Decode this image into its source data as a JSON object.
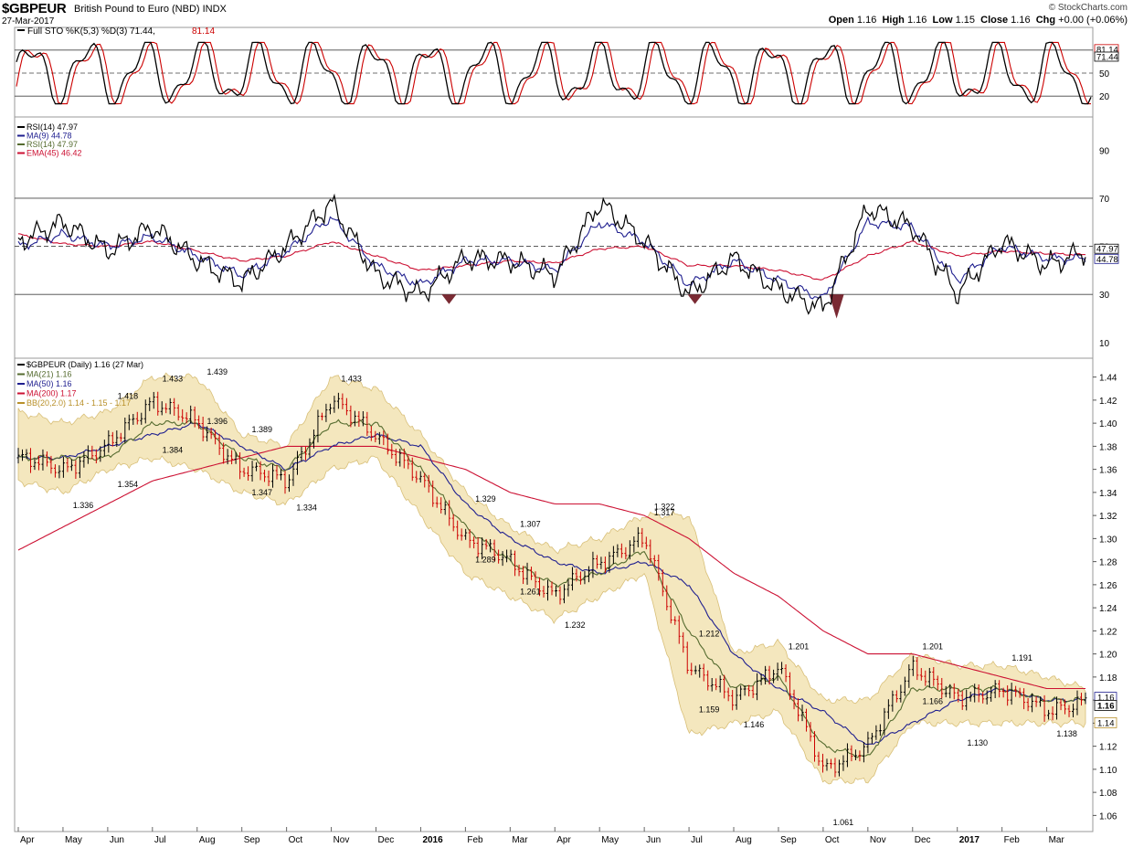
{
  "header": {
    "symbol": "$GBPEUR",
    "description": "British Pound to Euro (NBD)  INDX",
    "date": "27-Mar-2017",
    "brand": "© StockCharts.com",
    "open_label": "Open",
    "open": "1.16",
    "high_label": "High",
    "high": "1.16",
    "low_label": "Low",
    "low": "1.15",
    "close_label": "Close",
    "close": "1.16",
    "chg_label": "Chg",
    "chg": "+0.00 (+0.06%)"
  },
  "colors": {
    "price_up": "#000000",
    "price_down": "#cc0000",
    "ma21": "#556b2f",
    "ma50": "#1f1f8f",
    "ma200": "#cc1133",
    "bollinger_fill": "#f2e3b3",
    "bollinger_edge": "#d8bf78",
    "sto_k": "#000000",
    "sto_d": "#cc0000",
    "rsi": "#000000",
    "rsi_ma9": "#1f1f8f",
    "rsi_ema45": "#cc1133"
  },
  "panels": {
    "sto": {
      "legend": "Full STO %K(5,3) %D(3) 71.44,",
      "legend_d": "81.14",
      "ticks": [
        "80",
        "50",
        "20"
      ],
      "badges": [
        "81.14",
        "71.44"
      ]
    },
    "rsi": {
      "legend": [
        "RSI(14) 47.97",
        "MA(9) 44.78",
        "RSI(14) 47.97",
        "EMA(45) 46.42"
      ],
      "ticks": [
        "90",
        "70",
        "50",
        "30",
        "10"
      ],
      "badges": [
        "47.97",
        "44.78"
      ]
    },
    "price": {
      "legend": [
        "$GBPEUR (Daily) 1.16 (27 Mar)",
        "MA(21) 1.16",
        "MA(50) 1.16",
        "MA(200) 1.17",
        "BB(20,2.0) 1.14 - 1.15 - 1.17"
      ],
      "badges": [
        "1.16",
        "1.16",
        "1.14"
      ]
    }
  },
  "chart_data": [
    {
      "type": "line",
      "title": "Full STO %K(5,3) %D(3)",
      "ylim": [
        0,
        100
      ],
      "y_ticks": [
        20,
        50,
        80
      ],
      "series": [
        {
          "name": "%K",
          "last": 71.44
        },
        {
          "name": "%D",
          "last": 81.14
        }
      ]
    },
    {
      "type": "line",
      "title": "RSI(14)",
      "ylim": [
        5,
        100
      ],
      "y_ticks": [
        10,
        30,
        50,
        70,
        90
      ],
      "x": [
        "2015-04",
        "2015-05",
        "2015-06",
        "2015-07",
        "2015-08",
        "2015-09",
        "2015-10",
        "2015-11",
        "2015-12",
        "2016-01",
        "2016-02",
        "2016-03",
        "2016-04",
        "2016-05",
        "2016-06",
        "2016-07",
        "2016-08",
        "2016-09",
        "2016-10",
        "2016-11",
        "2016-12",
        "2017-01",
        "2017-02",
        "2017-03",
        "2017-03-27"
      ],
      "series": [
        {
          "name": "RSI(14)",
          "values": [
            52,
            60,
            48,
            58,
            44,
            35,
            50,
            68,
            38,
            30,
            45,
            44,
            38,
            68,
            52,
            30,
            45,
            32,
            24,
            66,
            58,
            30,
            52,
            42,
            47.97
          ]
        },
        {
          "name": "MA(9)",
          "values": [
            50,
            55,
            50,
            54,
            46,
            38,
            48,
            62,
            42,
            34,
            44,
            44,
            40,
            60,
            52,
            34,
            44,
            36,
            28,
            60,
            58,
            36,
            50,
            45,
            44.78
          ]
        },
        {
          "name": "EMA(45)",
          "values": [
            55,
            51,
            50,
            52,
            48,
            44,
            46,
            52,
            46,
            40,
            42,
            44,
            43,
            49,
            50,
            42,
            42,
            40,
            36,
            46,
            52,
            46,
            48,
            47,
            46.42
          ]
        }
      ]
    },
    {
      "type": "line",
      "title": "$GBPEUR (Daily) 1.16 (27 Mar)",
      "ylim": [
        1.05,
        1.45
      ],
      "y_ticks": [
        1.06,
        1.08,
        1.1,
        1.12,
        1.14,
        1.16,
        1.18,
        1.2,
        1.22,
        1.24,
        1.26,
        1.28,
        1.3,
        1.32,
        1.34,
        1.36,
        1.38,
        1.4,
        1.42,
        1.44
      ],
      "x_ticks": [
        "Apr",
        "May",
        "Jun",
        "Jul",
        "Aug",
        "Sep",
        "Oct",
        "Nov",
        "Dec",
        "2016",
        "Feb",
        "Mar",
        "Apr",
        "May",
        "Jun",
        "Jul",
        "Aug",
        "Sep",
        "Oct",
        "Nov",
        "Dec",
        "2017",
        "Feb",
        "Mar"
      ],
      "x": [
        "2015-04",
        "2015-05",
        "2015-06",
        "2015-07",
        "2015-08",
        "2015-09",
        "2015-10",
        "2015-11",
        "2015-12",
        "2016-01",
        "2016-02",
        "2016-03",
        "2016-04",
        "2016-05",
        "2016-06",
        "2016-07",
        "2016-08",
        "2016-09",
        "2016-10",
        "2016-11",
        "2016-12",
        "2017-01",
        "2017-02",
        "2017-03",
        "2017-03-27"
      ],
      "series": [
        {
          "name": "$GBPEUR",
          "values": [
            1.37,
            1.36,
            1.38,
            1.42,
            1.4,
            1.36,
            1.35,
            1.42,
            1.39,
            1.35,
            1.3,
            1.28,
            1.25,
            1.28,
            1.3,
            1.19,
            1.16,
            1.19,
            1.1,
            1.12,
            1.19,
            1.16,
            1.17,
            1.15,
            1.16
          ]
        },
        {
          "name": "MA(21)",
          "values": [
            1.37,
            1.37,
            1.37,
            1.4,
            1.4,
            1.37,
            1.36,
            1.4,
            1.4,
            1.36,
            1.31,
            1.28,
            1.26,
            1.27,
            1.29,
            1.22,
            1.17,
            1.18,
            1.12,
            1.11,
            1.17,
            1.17,
            1.17,
            1.16,
            1.16
          ]
        },
        {
          "name": "MA(50)",
          "values": [
            1.37,
            1.37,
            1.38,
            1.39,
            1.4,
            1.38,
            1.36,
            1.38,
            1.39,
            1.38,
            1.33,
            1.3,
            1.28,
            1.27,
            1.28,
            1.26,
            1.2,
            1.17,
            1.15,
            1.12,
            1.14,
            1.16,
            1.17,
            1.16,
            1.16
          ]
        },
        {
          "name": "MA(200)",
          "values": [
            1.29,
            1.31,
            1.33,
            1.35,
            1.36,
            1.37,
            1.38,
            1.38,
            1.38,
            1.37,
            1.36,
            1.34,
            1.33,
            1.33,
            1.32,
            1.3,
            1.27,
            1.25,
            1.22,
            1.2,
            1.2,
            1.19,
            1.18,
            1.17,
            1.17
          ]
        },
        {
          "name": "BB upper",
          "values": [
            1.41,
            1.4,
            1.41,
            1.44,
            1.44,
            1.39,
            1.38,
            1.44,
            1.43,
            1.39,
            1.34,
            1.31,
            1.29,
            1.3,
            1.32,
            1.32,
            1.2,
            1.21,
            1.16,
            1.16,
            1.2,
            1.19,
            1.19,
            1.18,
            1.17
          ]
        },
        {
          "name": "BB lower",
          "values": [
            1.35,
            1.34,
            1.36,
            1.37,
            1.36,
            1.34,
            1.33,
            1.36,
            1.37,
            1.32,
            1.27,
            1.25,
            1.23,
            1.25,
            1.27,
            1.13,
            1.14,
            1.15,
            1.09,
            1.09,
            1.14,
            1.14,
            1.14,
            1.14,
            1.14
          ]
        }
      ],
      "annotations": [
        {
          "label": "1.418",
          "x": "2015-06",
          "y": 1.418
        },
        {
          "label": "1.336",
          "x": "2015-05",
          "y": 1.336
        },
        {
          "label": "1.354",
          "x": "2015-06",
          "y": 1.354
        },
        {
          "label": "1.433",
          "x": "2015-07",
          "y": 1.433
        },
        {
          "label": "1.384",
          "x": "2015-07",
          "y": 1.384
        },
        {
          "label": "1.439",
          "x": "2015-08",
          "y": 1.439
        },
        {
          "label": "1.396",
          "x": "2015-08",
          "y": 1.396
        },
        {
          "label": "1.347",
          "x": "2015-09",
          "y": 1.347
        },
        {
          "label": "1.389",
          "x": "2015-09",
          "y": 1.389
        },
        {
          "label": "1.334",
          "x": "2015-10",
          "y": 1.334
        },
        {
          "label": "1.433",
          "x": "2015-11",
          "y": 1.433
        },
        {
          "label": "1.329",
          "x": "2016-02",
          "y": 1.329
        },
        {
          "label": "1.289",
          "x": "2016-02",
          "y": 1.289
        },
        {
          "label": "1.307",
          "x": "2016-03",
          "y": 1.307
        },
        {
          "label": "1.261",
          "x": "2016-03",
          "y": 1.261
        },
        {
          "label": "1.232",
          "x": "2016-04",
          "y": 1.232
        },
        {
          "label": "1.322",
          "x": "2016-06",
          "y": 1.322
        },
        {
          "label": "1.317",
          "x": "2016-06",
          "y": 1.317
        },
        {
          "label": "1.212",
          "x": "2016-07",
          "y": 1.212
        },
        {
          "label": "1.159",
          "x": "2016-07",
          "y": 1.159
        },
        {
          "label": "1.146",
          "x": "2016-08",
          "y": 1.146
        },
        {
          "label": "1.201",
          "x": "2016-09",
          "y": 1.201
        },
        {
          "label": "1.061",
          "x": "2016-10",
          "y": 1.061
        },
        {
          "label": "1.166",
          "x": "2016-12",
          "y": 1.166
        },
        {
          "label": "1.201",
          "x": "2016-12",
          "y": 1.201
        },
        {
          "label": "1.130",
          "x": "2017-01",
          "y": 1.13
        },
        {
          "label": "1.191",
          "x": "2017-02",
          "y": 1.191
        },
        {
          "label": "1.138",
          "x": "2017-03",
          "y": 1.138
        }
      ]
    }
  ]
}
